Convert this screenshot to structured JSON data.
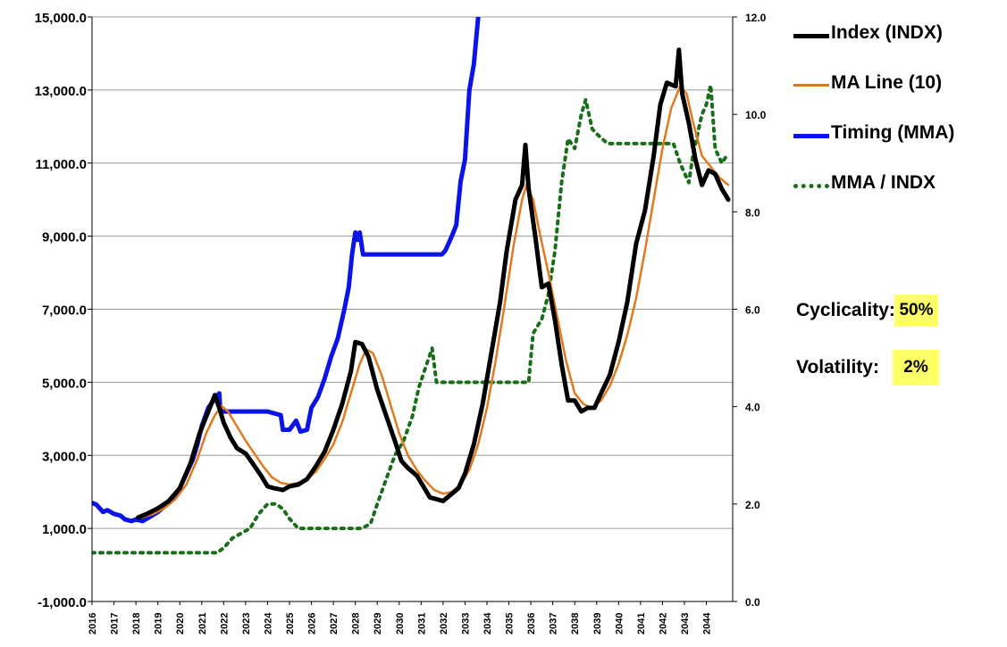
{
  "chart_data": {
    "type": "line",
    "title": "",
    "xlabel": "",
    "ylabel": "",
    "xlim": [
      2016,
      2045.2
    ],
    "ylim": [
      -1000,
      15000
    ],
    "y2lim": [
      0,
      12
    ],
    "grid": "horizontal",
    "legend_position": "right",
    "x_tick_labels": [
      "2016",
      "2017",
      "2018",
      "2019",
      "2020",
      "2021",
      "2022",
      "2023",
      "2024",
      "2025",
      "2026",
      "2027",
      "2028",
      "2029",
      "2030",
      "2031",
      "2032",
      "2033",
      "2034",
      "2035",
      "2036",
      "2037",
      "2038",
      "2039",
      "2040",
      "2041",
      "2042",
      "2043",
      "2044"
    ],
    "y_tick_labels": [
      "-1,000.0",
      "1,000.0",
      "3,000.0",
      "5,000.0",
      "7,000.0",
      "9,000.0",
      "11,000.0",
      "13,000.0",
      "15,000.0"
    ],
    "y2_tick_labels": [
      "0.0",
      "2.0",
      "4.0",
      "6.0",
      "8.0",
      "10.0",
      "12.0"
    ],
    "series": [
      {
        "name": "Index (INDX)",
        "axis": "left",
        "color": "#000000",
        "style": "solid-thick",
        "points": [
          [
            2018.1,
            1300
          ],
          [
            2018.5,
            1400
          ],
          [
            2019.0,
            1550
          ],
          [
            2019.5,
            1750
          ],
          [
            2020.0,
            2100
          ],
          [
            2020.5,
            2800
          ],
          [
            2020.9,
            3600
          ],
          [
            2021.3,
            4200
          ],
          [
            2021.6,
            4650
          ],
          [
            2021.8,
            4300
          ],
          [
            2022.0,
            3900
          ],
          [
            2022.3,
            3500
          ],
          [
            2022.6,
            3200
          ],
          [
            2023.0,
            3050
          ],
          [
            2023.3,
            2800
          ],
          [
            2023.7,
            2450
          ],
          [
            2024.0,
            2150
          ],
          [
            2024.3,
            2100
          ],
          [
            2024.7,
            2050
          ],
          [
            2025.0,
            2150
          ],
          [
            2025.4,
            2200
          ],
          [
            2025.8,
            2350
          ],
          [
            2026.2,
            2700
          ],
          [
            2026.6,
            3100
          ],
          [
            2027.0,
            3700
          ],
          [
            2027.4,
            4400
          ],
          [
            2027.8,
            5300
          ],
          [
            2028.0,
            6100
          ],
          [
            2028.3,
            6050
          ],
          [
            2028.6,
            5700
          ],
          [
            2029.0,
            4800
          ],
          [
            2029.4,
            4100
          ],
          [
            2029.8,
            3400
          ],
          [
            2030.1,
            2850
          ],
          [
            2030.4,
            2650
          ],
          [
            2030.8,
            2450
          ],
          [
            2031.1,
            2150
          ],
          [
            2031.4,
            1850
          ],
          [
            2031.7,
            1800
          ],
          [
            2032.0,
            1750
          ],
          [
            2032.3,
            1900
          ],
          [
            2032.7,
            2100
          ],
          [
            2033.0,
            2500
          ],
          [
            2033.4,
            3300
          ],
          [
            2033.8,
            4400
          ],
          [
            2034.2,
            5800
          ],
          [
            2034.6,
            7200
          ],
          [
            2034.9,
            8600
          ],
          [
            2035.3,
            10000
          ],
          [
            2035.6,
            10400
          ],
          [
            2035.75,
            11500
          ],
          [
            2035.9,
            10300
          ],
          [
            2036.2,
            9000
          ],
          [
            2036.5,
            7600
          ],
          [
            2036.8,
            7700
          ],
          [
            2037.1,
            6700
          ],
          [
            2037.4,
            5500
          ],
          [
            2037.7,
            4500
          ],
          [
            2038.0,
            4500
          ],
          [
            2038.3,
            4200
          ],
          [
            2038.6,
            4300
          ],
          [
            2038.9,
            4300
          ],
          [
            2039.2,
            4700
          ],
          [
            2039.6,
            5200
          ],
          [
            2040.0,
            6100
          ],
          [
            2040.4,
            7200
          ],
          [
            2040.8,
            8800
          ],
          [
            2041.2,
            9700
          ],
          [
            2041.6,
            11200
          ],
          [
            2041.9,
            12600
          ],
          [
            2042.2,
            13200
          ],
          [
            2042.6,
            13100
          ],
          [
            2042.75,
            14100
          ],
          [
            2042.9,
            12900
          ],
          [
            2043.2,
            12100
          ],
          [
            2043.5,
            11100
          ],
          [
            2043.8,
            10400
          ],
          [
            2044.1,
            10800
          ],
          [
            2044.4,
            10700
          ],
          [
            2044.7,
            10300
          ],
          [
            2045.0,
            10000
          ]
        ]
      },
      {
        "name": "MA Line (10)",
        "axis": "left",
        "color": "#e07a1f",
        "style": "solid",
        "points": [
          [
            2018.3,
            1300
          ],
          [
            2018.8,
            1400
          ],
          [
            2019.3,
            1550
          ],
          [
            2019.8,
            1800
          ],
          [
            2020.3,
            2200
          ],
          [
            2020.8,
            2900
          ],
          [
            2021.2,
            3600
          ],
          [
            2021.6,
            4100
          ],
          [
            2021.9,
            4350
          ],
          [
            2022.2,
            4200
          ],
          [
            2022.6,
            3800
          ],
          [
            2023.0,
            3400
          ],
          [
            2023.4,
            3050
          ],
          [
            2023.8,
            2700
          ],
          [
            2024.2,
            2400
          ],
          [
            2024.6,
            2250
          ],
          [
            2025.0,
            2200
          ],
          [
            2025.4,
            2250
          ],
          [
            2025.8,
            2350
          ],
          [
            2026.2,
            2550
          ],
          [
            2026.6,
            2900
          ],
          [
            2027.0,
            3300
          ],
          [
            2027.4,
            3900
          ],
          [
            2027.8,
            4700
          ],
          [
            2028.2,
            5500
          ],
          [
            2028.5,
            5900
          ],
          [
            2028.8,
            5800
          ],
          [
            2029.2,
            5200
          ],
          [
            2029.6,
            4400
          ],
          [
            2030.0,
            3600
          ],
          [
            2030.4,
            3000
          ],
          [
            2030.8,
            2600
          ],
          [
            2031.2,
            2300
          ],
          [
            2031.6,
            2050
          ],
          [
            2032.0,
            1950
          ],
          [
            2032.4,
            2000
          ],
          [
            2032.8,
            2200
          ],
          [
            2033.2,
            2600
          ],
          [
            2033.6,
            3300
          ],
          [
            2034.0,
            4300
          ],
          [
            2034.4,
            5600
          ],
          [
            2034.8,
            7100
          ],
          [
            2035.2,
            8700
          ],
          [
            2035.6,
            10000
          ],
          [
            2035.8,
            10400
          ],
          [
            2036.1,
            10000
          ],
          [
            2036.4,
            9100
          ],
          [
            2036.8,
            8000
          ],
          [
            2037.2,
            6800
          ],
          [
            2037.6,
            5600
          ],
          [
            2038.0,
            4700
          ],
          [
            2038.4,
            4400
          ],
          [
            2038.8,
            4300
          ],
          [
            2039.2,
            4500
          ],
          [
            2039.6,
            4900
          ],
          [
            2040.0,
            5500
          ],
          [
            2040.4,
            6300
          ],
          [
            2040.8,
            7300
          ],
          [
            2041.2,
            8600
          ],
          [
            2041.6,
            10000
          ],
          [
            2042.0,
            11400
          ],
          [
            2042.4,
            12500
          ],
          [
            2042.8,
            13100
          ],
          [
            2043.1,
            12900
          ],
          [
            2043.4,
            12100
          ],
          [
            2043.8,
            11200
          ],
          [
            2044.2,
            10900
          ],
          [
            2044.6,
            10600
          ],
          [
            2045.0,
            10400
          ]
        ]
      },
      {
        "name": "Timing (MMA)",
        "axis": "left",
        "color": "#0a14e6",
        "style": "solid-thick",
        "points": [
          [
            2016.0,
            1700
          ],
          [
            2016.2,
            1650
          ],
          [
            2016.5,
            1450
          ],
          [
            2016.7,
            1500
          ],
          [
            2017.0,
            1400
          ],
          [
            2017.3,
            1350
          ],
          [
            2017.5,
            1250
          ],
          [
            2017.8,
            1200
          ],
          [
            2018.0,
            1250
          ],
          [
            2018.3,
            1200
          ],
          [
            2018.6,
            1300
          ],
          [
            2019.0,
            1450
          ],
          [
            2019.3,
            1600
          ],
          [
            2019.7,
            1800
          ],
          [
            2020.0,
            2100
          ],
          [
            2020.3,
            2500
          ],
          [
            2020.6,
            2900
          ],
          [
            2020.8,
            3300
          ],
          [
            2021.0,
            3800
          ],
          [
            2021.3,
            4300
          ],
          [
            2021.6,
            4550
          ],
          [
            2021.8,
            4700
          ],
          [
            2021.85,
            4200
          ],
          [
            2022.0,
            4200
          ],
          [
            2023.0,
            4200
          ],
          [
            2024.0,
            4200
          ],
          [
            2024.6,
            4100
          ],
          [
            2024.7,
            3700
          ],
          [
            2025.0,
            3700
          ],
          [
            2025.3,
            3950
          ],
          [
            2025.5,
            3650
          ],
          [
            2025.8,
            3700
          ],
          [
            2026.0,
            4300
          ],
          [
            2026.3,
            4600
          ],
          [
            2026.6,
            5100
          ],
          [
            2026.9,
            5700
          ],
          [
            2027.2,
            6200
          ],
          [
            2027.5,
            7000
          ],
          [
            2027.7,
            7600
          ],
          [
            2027.85,
            8500
          ],
          [
            2028.0,
            9100
          ],
          [
            2028.1,
            8900
          ],
          [
            2028.2,
            9100
          ],
          [
            2028.35,
            8500
          ],
          [
            2029.0,
            8500
          ],
          [
            2030.0,
            8500
          ],
          [
            2031.0,
            8500
          ],
          [
            2031.95,
            8500
          ],
          [
            2032.1,
            8600
          ],
          [
            2032.4,
            9000
          ],
          [
            2032.6,
            9300
          ],
          [
            2032.8,
            10500
          ],
          [
            2033.0,
            11100
          ],
          [
            2033.2,
            13000
          ],
          [
            2033.4,
            13700
          ],
          [
            2033.6,
            15000
          ]
        ]
      },
      {
        "name": "MMA / INDX",
        "axis": "right",
        "color": "#1a6e1a",
        "style": "dotted",
        "points": [
          [
            2016.0,
            1.0
          ],
          [
            2017.0,
            1.0
          ],
          [
            2018.0,
            1.0
          ],
          [
            2019.0,
            1.0
          ],
          [
            2020.0,
            1.0
          ],
          [
            2021.0,
            1.0
          ],
          [
            2021.7,
            1.0
          ],
          [
            2022.0,
            1.1
          ],
          [
            2022.4,
            1.3
          ],
          [
            2022.8,
            1.4
          ],
          [
            2023.2,
            1.5
          ],
          [
            2023.6,
            1.8
          ],
          [
            2024.0,
            2.0
          ],
          [
            2024.4,
            2.0
          ],
          [
            2024.7,
            1.9
          ],
          [
            2025.0,
            1.7
          ],
          [
            2025.4,
            1.5
          ],
          [
            2026.0,
            1.5
          ],
          [
            2027.0,
            1.5
          ],
          [
            2027.5,
            1.5
          ],
          [
            2027.9,
            1.5
          ],
          [
            2028.3,
            1.5
          ],
          [
            2028.7,
            1.6
          ],
          [
            2029.0,
            2.0
          ],
          [
            2029.4,
            2.5
          ],
          [
            2029.8,
            3.0
          ],
          [
            2030.2,
            3.3
          ],
          [
            2030.6,
            3.8
          ],
          [
            2030.9,
            4.4
          ],
          [
            2031.2,
            4.8
          ],
          [
            2031.5,
            5.2
          ],
          [
            2031.7,
            4.5
          ],
          [
            2032.0,
            4.5
          ],
          [
            2033.0,
            4.5
          ],
          [
            2034.0,
            4.5
          ],
          [
            2035.0,
            4.5
          ],
          [
            2035.9,
            4.5
          ],
          [
            2036.1,
            5.5
          ],
          [
            2036.5,
            5.8
          ],
          [
            2036.8,
            6.3
          ],
          [
            2037.1,
            7.2
          ],
          [
            2037.4,
            8.6
          ],
          [
            2037.7,
            9.5
          ],
          [
            2038.0,
            9.3
          ],
          [
            2038.3,
            10.0
          ],
          [
            2038.5,
            10.3
          ],
          [
            2038.8,
            9.7
          ],
          [
            2039.0,
            9.6
          ],
          [
            2039.5,
            9.4
          ],
          [
            2040.0,
            9.4
          ],
          [
            2041.0,
            9.4
          ],
          [
            2042.0,
            9.4
          ],
          [
            2042.5,
            9.4
          ],
          [
            2042.8,
            9.0
          ],
          [
            2043.0,
            8.8
          ],
          [
            2043.2,
            8.6
          ],
          [
            2043.4,
            9.2
          ],
          [
            2043.6,
            9.6
          ],
          [
            2043.8,
            10.0
          ],
          [
            2044.0,
            10.2
          ],
          [
            2044.2,
            10.6
          ],
          [
            2044.4,
            9.3
          ],
          [
            2044.7,
            9.0
          ],
          [
            2045.0,
            9.2
          ]
        ]
      }
    ]
  },
  "legend": {
    "items": [
      {
        "label": "Index (INDX)",
        "color": "#000000",
        "style": "solid-thick"
      },
      {
        "label": "MA Line (10)",
        "color": "#e07a1f",
        "style": "solid"
      },
      {
        "label": "Timing (MMA)",
        "color": "#0a14e6",
        "style": "solid-thick"
      },
      {
        "label": "MMA / INDX",
        "color": "#1a6e1a",
        "style": "dotted"
      }
    ]
  },
  "stats": {
    "cyclicality_label": "Cyclicality:",
    "cyclicality_value": "50%",
    "volatility_label": "Volatility:",
    "volatility_value": "2%",
    "highlight_color": "#ffff66"
  }
}
